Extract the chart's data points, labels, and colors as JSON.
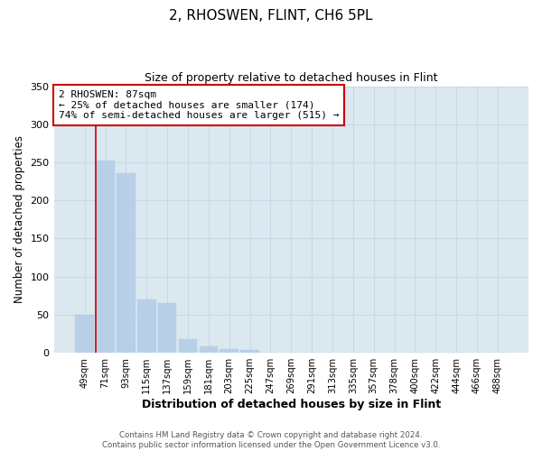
{
  "title": "2, RHOSWEN, FLINT, CH6 5PL",
  "subtitle": "Size of property relative to detached houses in Flint",
  "xlabel": "Distribution of detached houses by size in Flint",
  "ylabel": "Number of detached properties",
  "bar_labels": [
    "49sqm",
    "71sqm",
    "93sqm",
    "115sqm",
    "137sqm",
    "159sqm",
    "181sqm",
    "203sqm",
    "225sqm",
    "247sqm",
    "269sqm",
    "291sqm",
    "313sqm",
    "335sqm",
    "357sqm",
    "378sqm",
    "400sqm",
    "422sqm",
    "444sqm",
    "466sqm",
    "488sqm"
  ],
  "bar_values": [
    50,
    252,
    236,
    70,
    65,
    18,
    9,
    5,
    4,
    0,
    0,
    0,
    0,
    0,
    0,
    0,
    0,
    0,
    0,
    0,
    0
  ],
  "bar_color": "#b8cfe8",
  "bar_edgecolor": "#b8cfe8",
  "grid_color": "#c8d8e8",
  "background_color": "#dce8f0",
  "ylim": [
    0,
    350
  ],
  "yticks": [
    0,
    50,
    100,
    150,
    200,
    250,
    300,
    350
  ],
  "annotation_text": "2 RHOSWEN: 87sqm\n← 25% of detached houses are smaller (174)\n74% of semi-detached houses are larger (515) →",
  "annotation_box_color": "#ffffff",
  "annotation_box_edgecolor": "#cc0000",
  "footer_text": "Contains HM Land Registry data © Crown copyright and database right 2024.\nContains public sector information licensed under the Open Government Licence v3.0.",
  "redline_bin_index": 1
}
